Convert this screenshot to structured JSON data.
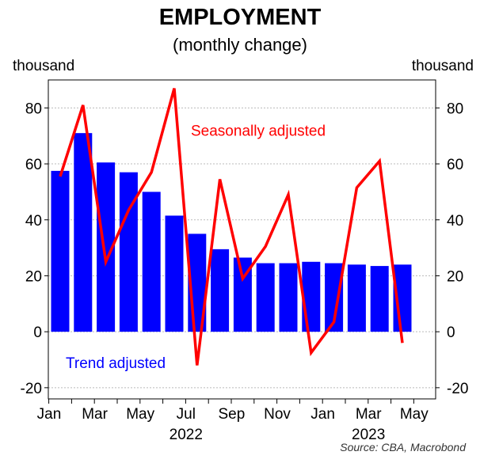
{
  "title": "EMPLOYMENT",
  "subtitle": "(monthly change)",
  "unit_left": "thousand",
  "unit_right": "thousand",
  "source": "Source: CBA, Macrobond",
  "colors": {
    "trend": "#0000ff",
    "seasonal": "#ff0000",
    "grid": "#bbbbbb"
  },
  "chart_data": {
    "type": "bar",
    "xlabel": "",
    "ylabel": "",
    "ylim": [
      -24,
      90
    ],
    "yticks": [
      -20,
      0,
      20,
      40,
      60,
      80
    ],
    "grid": true,
    "months": [
      "Jan 2022",
      "Feb 2022",
      "Mar 2022",
      "Apr 2022",
      "May 2022",
      "Jun 2022",
      "Jul 2022",
      "Aug 2022",
      "Sep 2022",
      "Oct 2022",
      "Nov 2022",
      "Dec 2022",
      "Jan 2023",
      "Feb 2023",
      "Mar 2023",
      "Apr 2023"
    ],
    "month_tick_labels": [
      "Jan",
      "Mar",
      "May",
      "Jul",
      "Sep",
      "Nov",
      "Jan",
      "Mar",
      "May"
    ],
    "year_labels": [
      "2022",
      "2023"
    ],
    "series": [
      {
        "name": "Trend adjusted",
        "type": "bar",
        "values": [
          57.5,
          71,
          60.5,
          57,
          50,
          41.5,
          35,
          29.5,
          26.5,
          24.5,
          24.5,
          25,
          24.5,
          24,
          23.5,
          24
        ]
      },
      {
        "name": "Seasonally adjusted",
        "type": "line",
        "values": [
          55.5,
          81,
          25,
          43.5,
          57,
          87,
          -12,
          54.5,
          19,
          30.5,
          49,
          -7.5,
          3.5,
          51.5,
          61,
          -4
        ]
      }
    ]
  }
}
